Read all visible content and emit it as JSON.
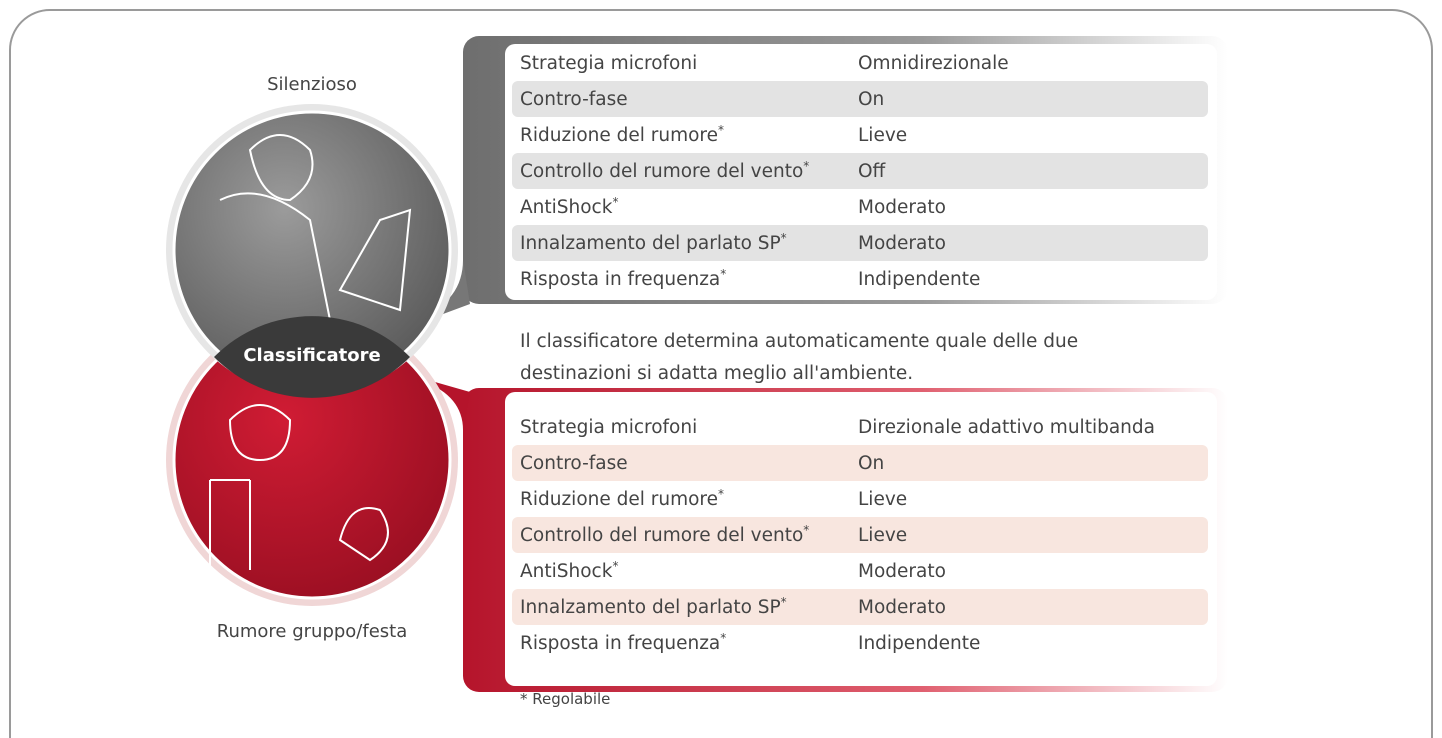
{
  "modes": [
    {
      "name": "Silenzioso",
      "rows": [
        {
          "setting": "Strategia microfoni",
          "value": "Omnidirezionale"
        },
        {
          "setting": "Contro-fase",
          "value": "On"
        },
        {
          "setting": "Riduzione del rumore",
          "note": "*",
          "value": "Lieve"
        },
        {
          "setting": "Controllo del rumore del vento",
          "note": "*",
          "value": "Off"
        },
        {
          "setting": "AntiShock",
          "note": "*",
          "value": "Moderato"
        },
        {
          "setting": "Innalzamento del parlato SP",
          "note": "*",
          "value": "Moderato"
        },
        {
          "setting": "Risposta in frequenza",
          "note": "*",
          "value": "Indipendente"
        }
      ]
    },
    {
      "name": "Rumore gruppo/festa",
      "rows": [
        {
          "setting": "Strategia microfoni",
          "value": "Direzionale adattivo multibanda"
        },
        {
          "setting": "Contro-fase",
          "value": "On"
        },
        {
          "setting": "Riduzione del rumore",
          "note": "*",
          "value": "Lieve"
        },
        {
          "setting": "Controllo del rumore del vento",
          "note": "*",
          "value": "Lieve"
        },
        {
          "setting": "AntiShock",
          "note": "*",
          "value": "Moderato"
        },
        {
          "setting": "Innalzamento del parlato SP",
          "note": "*",
          "value": "Moderato"
        },
        {
          "setting": "Risposta in frequenza",
          "note": "*",
          "value": "Indipendente"
        }
      ]
    }
  ],
  "classifier": {
    "label": "Classificatore",
    "description": [
      "Il classificatore determina automaticamente quale delle due",
      "destinazioni si adatta meglio all'ambiente."
    ]
  },
  "footnote": "* Regolabile"
}
